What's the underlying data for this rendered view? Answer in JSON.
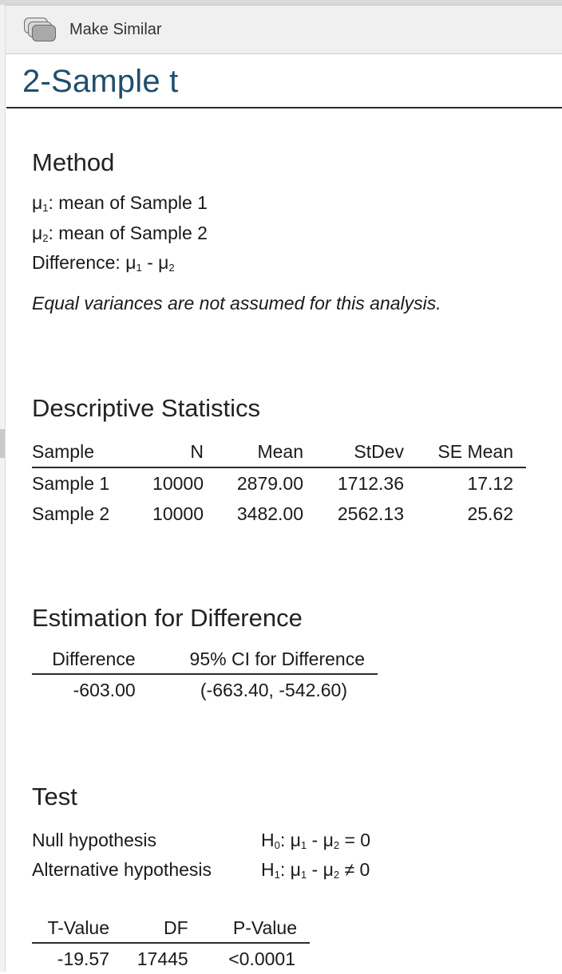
{
  "toolbar": {
    "make_similar_label": "Make Similar",
    "icon": "make-similar-icon"
  },
  "title": "2-Sample t",
  "method": {
    "heading": "Method",
    "mu1_symbol": "μ",
    "mu1_sub": "1",
    "mu1_text": ": mean of Sample 1",
    "mu2_symbol": "μ",
    "mu2_sub": "2",
    "mu2_text": ": mean of Sample 2",
    "difference_prefix": "Difference: μ",
    "difference_sub1": "1",
    "difference_mid": " - μ",
    "difference_sub2": "2",
    "note": "Equal variances are not assumed for this analysis."
  },
  "descriptive": {
    "heading": "Descriptive Statistics",
    "columns": [
      "Sample",
      "N",
      "Mean",
      "StDev",
      "SE Mean"
    ],
    "rows": [
      [
        "Sample 1",
        "10000",
        "2879.00",
        "1712.36",
        "17.12"
      ],
      [
        "Sample 2",
        "10000",
        "3482.00",
        "2562.13",
        "25.62"
      ]
    ]
  },
  "estimation": {
    "heading": "Estimation for Difference",
    "columns": [
      "Difference",
      "95% CI for Difference"
    ],
    "rows": [
      [
        "-603.00",
        "(-663.40, -542.60)"
      ]
    ]
  },
  "test": {
    "heading": "Test",
    "null_label": "Null hypothesis",
    "null_h": "H",
    "null_h_sub": "0",
    "null_expr_a": ": μ",
    "null_sub1": "1",
    "null_expr_b": " - μ",
    "null_sub2": "2",
    "null_expr_c": " = 0",
    "alt_label": "Alternative hypothesis",
    "alt_h": "H",
    "alt_h_sub": "1",
    "alt_expr_a": ": μ",
    "alt_sub1": "1",
    "alt_expr_b": " - μ",
    "alt_sub2": "2",
    "alt_expr_c": " ≠ 0",
    "columns": [
      "T-Value",
      "DF",
      "P-Value"
    ],
    "rows": [
      [
        "-19.57",
        "17445",
        "<0.0001"
      ]
    ]
  },
  "colors": {
    "title": "#1f4e6e",
    "rule": "#2c2c2c",
    "toolbar_bg": "#f0f0f0"
  }
}
